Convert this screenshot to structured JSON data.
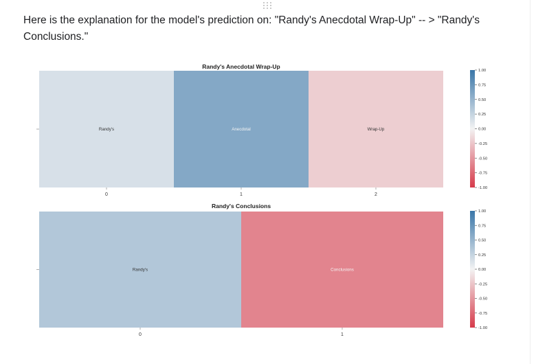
{
  "header": {
    "text": "Here is the explanation for the model's prediction on: \"Randy's Anecdotal Wrap-Up\" -- > \"Randy's Conclusions.\""
  },
  "colors": {
    "cmap_negative": "#d63a4a",
    "cmap_neutral": "#f3f3f3",
    "cmap_positive": "#3a76a8",
    "text_dark": "#202124"
  },
  "icons": {
    "drag": "drag-handle-icon"
  },
  "chart_data": [
    {
      "type": "heatmap",
      "title": "Randy's Anecdotal Wrap-Up",
      "categories": [
        "Randy's",
        "Anecdotal",
        "Wrap-Up"
      ],
      "xticks": [
        "0",
        "1",
        "2"
      ],
      "values": [
        0.15,
        0.6,
        -0.2
      ],
      "colorbar": {
        "min": -1.0,
        "max": 1.0,
        "ticks": [
          "1.00",
          "0.75",
          "0.50",
          "0.25",
          "0.00",
          "-0.25",
          "-0.50",
          "-0.75",
          "-1.00"
        ]
      }
    },
    {
      "type": "heatmap",
      "title": "Randy's Conclusions",
      "categories": [
        "Randy's",
        "Conclusions"
      ],
      "xticks": [
        "0",
        "1"
      ],
      "values": [
        0.35,
        -0.6
      ],
      "colorbar": {
        "min": -1.0,
        "max": 1.0,
        "ticks": [
          "1.00",
          "0.75",
          "0.50",
          "0.25",
          "0.00",
          "-0.25",
          "-0.50",
          "-0.75",
          "-1.00"
        ]
      }
    }
  ]
}
